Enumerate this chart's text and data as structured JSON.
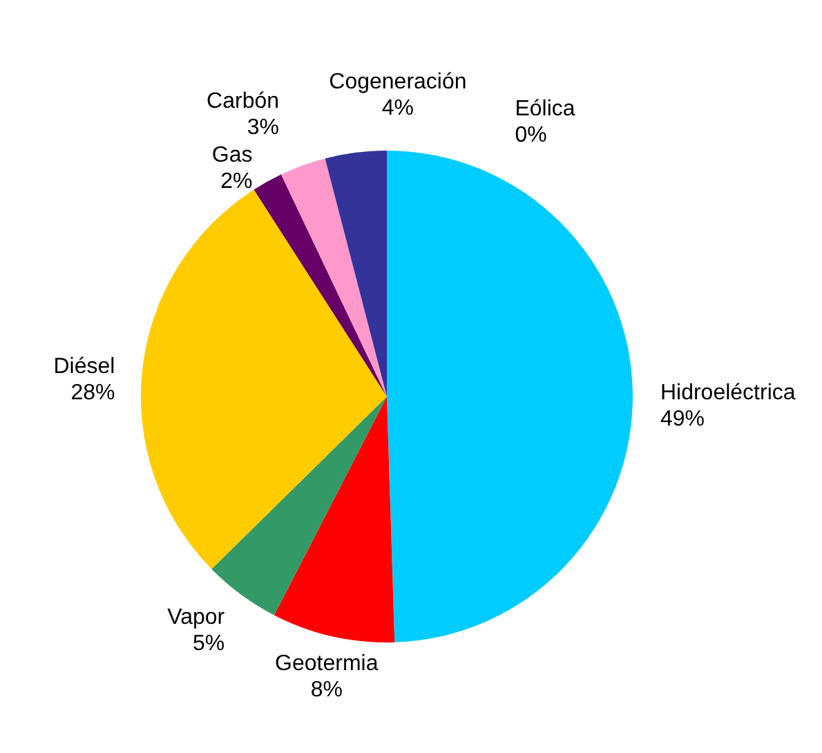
{
  "chart_data": {
    "type": "pie",
    "categories": [
      "Hidroeléctrica",
      "Geotermia",
      "Vapor",
      "Diésel",
      "Gas",
      "Carbón",
      "Cogeneración",
      "Eólica"
    ],
    "values": [
      49,
      8,
      5,
      28,
      2,
      3,
      4,
      0
    ],
    "value_labels": [
      "49%",
      "8%",
      "5%",
      "28%",
      "2%",
      "3%",
      "4%",
      "0%"
    ],
    "colors": [
      "#00ccff",
      "#ff0000",
      "#339966",
      "#ffcc00",
      "#660066",
      "#ff99cc",
      "#333399",
      "#9999ff"
    ]
  }
}
